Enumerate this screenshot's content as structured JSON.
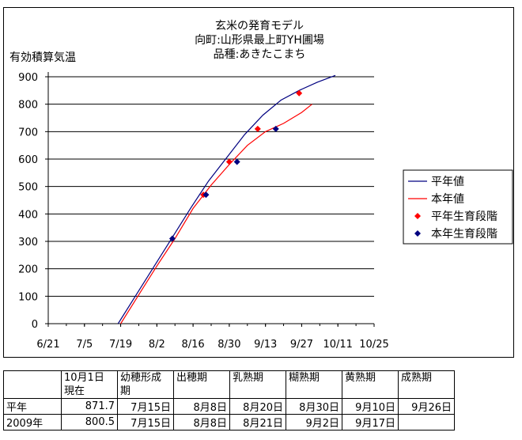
{
  "chart_data": {
    "type": "line",
    "title_lines": [
      "玄米の発育モデル",
      "向町:山形県最上町YH圃場",
      "品種:あきたこまち"
    ],
    "ylabel": "有効積算気温",
    "xlabel": "",
    "x_ticks": [
      "6/21",
      "7/5",
      "7/19",
      "8/2",
      "8/16",
      "8/30",
      "9/13",
      "9/27",
      "10/11",
      "10/25"
    ],
    "y_ticks": [
      "0",
      "100",
      "200",
      "300",
      "400",
      "500",
      "600",
      "700",
      "800",
      "900"
    ],
    "ylim": [
      0,
      900
    ],
    "grid": "horizontal",
    "legend_position": "right",
    "series": [
      {
        "name": "平年値",
        "kind": "line",
        "color": "#000080",
        "x": [
          "7/18",
          "7/25",
          "8/1",
          "8/8",
          "8/15",
          "8/22",
          "8/29",
          "9/5",
          "9/12",
          "9/19",
          "9/26",
          "10/3",
          "10/10"
        ],
        "y": [
          0,
          105,
          210,
          315,
          420,
          520,
          605,
          690,
          760,
          815,
          850,
          880,
          905
        ]
      },
      {
        "name": "本年値",
        "kind": "line",
        "color": "#ff0000",
        "x": [
          "7/19",
          "7/26",
          "8/2",
          "8/9",
          "8/16",
          "8/23",
          "8/30",
          "9/6",
          "9/13",
          "9/20",
          "9/27",
          "10/1"
        ],
        "y": [
          0,
          105,
          210,
          310,
          420,
          505,
          580,
          650,
          700,
          730,
          770,
          800
        ]
      },
      {
        "name": "平年生育段階",
        "kind": "marker",
        "color": "#ff0000",
        "x": [
          "8/20",
          "8/30",
          "9/10",
          "9/26"
        ],
        "y": [
          470,
          590,
          710,
          840
        ]
      },
      {
        "name": "本年生育段階",
        "kind": "marker",
        "color": "#000080",
        "x": [
          "8/8",
          "8/21",
          "9/2",
          "9/17"
        ],
        "y": [
          310,
          470,
          590,
          710
        ]
      }
    ]
  },
  "table": {
    "headers": [
      "",
      "10月1日\n現在",
      "幼穂形成\n期",
      "出穂期",
      "乳熟期",
      "糊熟期",
      "黄熟期",
      "成熟期"
    ],
    "rows": [
      [
        "平年",
        "871.7",
        "7月15日",
        "8月8日",
        "8月20日",
        "8月30日",
        "9月10日",
        "9月26日"
      ],
      [
        "2009年",
        "800.5",
        "7月15日",
        "8月8日",
        "8月21日",
        "9月2日",
        "9月17日",
        ""
      ]
    ]
  }
}
